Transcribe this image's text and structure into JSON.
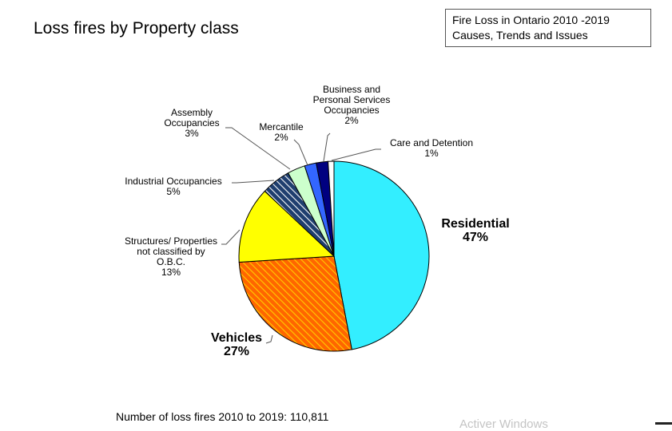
{
  "page": {
    "title": "Loss fires by Property class",
    "source_line1": "Fire Loss in Ontario  2010 -2019",
    "source_line2": "Causes, Trends and Issues",
    "footer": "Number of loss fires 2010 to 2019:  110,811",
    "watermark": "Activer Windows"
  },
  "chart_data": {
    "type": "pie",
    "title": "Loss fires by Property class",
    "start_angle_deg": 0,
    "direction": "clockwise",
    "slices": [
      {
        "name": "Residential",
        "value": 47,
        "label_lines": [
          "Residential",
          "47%"
        ],
        "color": "#33eeff",
        "pattern": "solid",
        "bold": true
      },
      {
        "name": "Vehicles",
        "value": 27,
        "label_lines": [
          "Vehicles",
          "27%"
        ],
        "color": "#ff6600",
        "pattern": "hatch",
        "bold": true
      },
      {
        "name": "Structures/ Properties not classified by O.B.C.",
        "value": 13,
        "label_lines": [
          "Structures/  Properties",
          "not classified by",
          "O.B.C.",
          "13%"
        ],
        "color": "#ffff00",
        "pattern": "solid",
        "bold": false
      },
      {
        "name": "Industrial Occupancies",
        "value": 5,
        "label_lines": [
          "Industrial  Occupancies",
          "5%"
        ],
        "color": "#1f3f6f",
        "pattern": "stripe",
        "bold": false
      },
      {
        "name": "Assembly Occupancies",
        "value": 3,
        "label_lines": [
          "Assembly",
          "Occupancies",
          "3%"
        ],
        "color": "#ccffcc",
        "pattern": "solid",
        "bold": false
      },
      {
        "name": "Mercantile",
        "value": 2,
        "label_lines": [
          "Mercantile",
          "2%"
        ],
        "color": "#3366ff",
        "pattern": "solid",
        "bold": false
      },
      {
        "name": "Business and Personal Services Occupancies",
        "value": 2,
        "label_lines": [
          "Business and",
          "Personal Services",
          "Occupancies",
          "2%"
        ],
        "color": "#000080",
        "pattern": "solid",
        "bold": false
      },
      {
        "name": "Care and Detention",
        "value": 1,
        "label_lines": [
          "Care and Detention",
          "1%"
        ],
        "color": "#ffffff",
        "pattern": "solid",
        "bold": false
      }
    ]
  }
}
